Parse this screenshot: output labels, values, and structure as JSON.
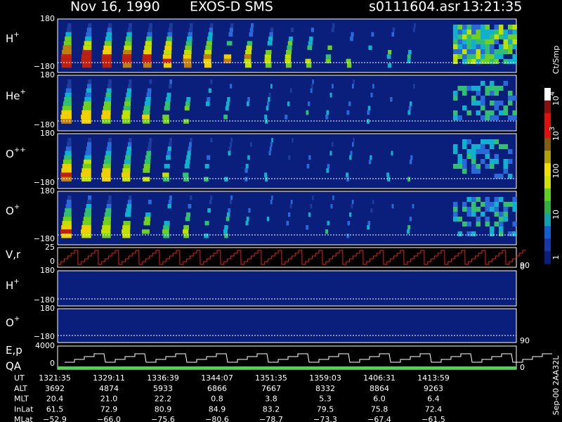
{
  "header": {
    "date": "Nov 16, 1990",
    "instrument": "EXOS-D SMS",
    "file": "s0111604.asr",
    "time": "13:21:35"
  },
  "panels": [
    {
      "label": {
        "base": "H",
        "sup": "+"
      },
      "ticks": [
        "180",
        "−180"
      ]
    },
    {
      "label": {
        "base": "He",
        "sup": "+"
      },
      "ticks": [
        "180",
        "−180"
      ]
    },
    {
      "label": {
        "base": "O",
        "sup": "++"
      },
      "ticks": [
        "180",
        "−180"
      ]
    },
    {
      "label": {
        "base": "O",
        "sup": "+"
      },
      "ticks": [
        "180",
        "−180"
      ]
    },
    {
      "label": {
        "base": "V,r"
      },
      "ticks": [
        "25",
        "0"
      ],
      "right_ticks": [
        "90",
        "0"
      ]
    },
    {
      "label": {
        "base": "H",
        "sup": "+"
      },
      "ticks": [
        "180",
        "−180"
      ]
    },
    {
      "label": {
        "base": "O",
        "sup": "+"
      },
      "ticks": [
        "180",
        "−180"
      ],
      "right_ticks": [
        "90"
      ]
    },
    {
      "label": {
        "base": "E,p"
      },
      "label2": "QA",
      "ticks": [
        "4000",
        "0"
      ],
      "right_ticks": [
        "0"
      ]
    }
  ],
  "colorbar": {
    "unit": "Ct/Smp",
    "ticks": [
      {
        "base": "10",
        "sup": "4"
      },
      {
        "base": "10",
        "sup": "3"
      },
      {
        "base": "100"
      },
      {
        "base": "10"
      },
      {
        "base": "1"
      }
    ]
  },
  "table": {
    "rows": [
      [
        "UT",
        "1321:35",
        "1329:11",
        "1336:39",
        "1344:07",
        "1351:35",
        "1359:03",
        "1406:31",
        "1413:59"
      ],
      [
        "ALT",
        "3692",
        "4874",
        "5933",
        "6866",
        "7667",
        "8332",
        "8864",
        "9263"
      ],
      [
        "MLT",
        "20.4",
        "21.0",
        "22.2",
        "0.8",
        "3.8",
        "5.3",
        "6.0",
        "6.4"
      ],
      [
        "InLat",
        "61.5",
        "72.9",
        "80.9",
        "84.9",
        "83.2",
        "79.5",
        "75.8",
        "72.4"
      ],
      [
        "MLat",
        "−52.9",
        "−66.0",
        "−75.6",
        "−80.6",
        "−78.7",
        "−73.3",
        "−67.4",
        "−61.5"
      ]
    ]
  },
  "footer": "Sep-00  2AA32L"
}
